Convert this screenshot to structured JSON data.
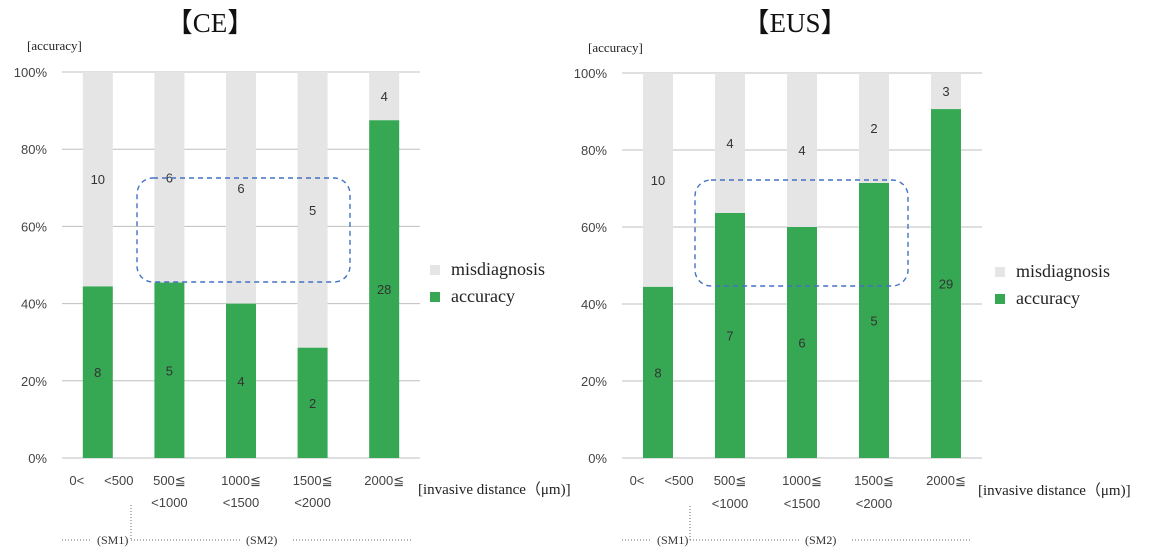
{
  "colors": {
    "accuracy": "#36a853",
    "misdiagnosis": "#e5e5e5",
    "grid": "#bfbfbf",
    "highlight": "#4472c4"
  },
  "charts": [
    {
      "title": "【CE】",
      "ylabel": "[accuracy]",
      "xlabel": "[invasive distance（μm)]",
      "legend": [
        "misdiagnosis",
        "accuracy"
      ],
      "categories": [
        [
          "0<",
          "<500"
        ],
        [
          "500≦",
          "<1000"
        ],
        [
          "1000≦",
          "<1500"
        ],
        [
          "1500≦",
          "<2000"
        ],
        [
          "2000≦"
        ]
      ],
      "groups": [
        "(SM1)",
        "(SM2)"
      ]
    },
    {
      "title": "【EUS】",
      "ylabel": "[accuracy]",
      "xlabel": "[invasive distance（μm)]",
      "legend": [
        "misdiagnosis",
        "accuracy"
      ],
      "categories": [
        [
          "0<",
          "<500"
        ],
        [
          "500≦",
          "<1000"
        ],
        [
          "1000≦",
          "<1500"
        ],
        [
          "1500≦",
          "<2000"
        ],
        [
          "2000≦"
        ]
      ],
      "groups": [
        "(SM1)",
        "(SM2)"
      ]
    }
  ],
  "chart_data": [
    {
      "type": "bar",
      "stacked": true,
      "normalized": true,
      "title": "【CE】",
      "ylabel": "[accuracy]",
      "xlabel": "[invasive distance（μm)]",
      "categories": [
        "0< <500",
        "500≦ <1000",
        "1000≦ <1500",
        "1500≦ <2000",
        "2000≦"
      ],
      "yticks": [
        "0%",
        "20%",
        "40%",
        "60%",
        "80%",
        "100%"
      ],
      "ylim": [
        0,
        100
      ],
      "series": [
        {
          "name": "accuracy",
          "values": [
            8,
            5,
            4,
            2,
            28
          ]
        },
        {
          "name": "misdiagnosis",
          "values": [
            10,
            6,
            6,
            5,
            4
          ]
        }
      ],
      "legend": "right",
      "grid": true
    },
    {
      "type": "bar",
      "stacked": true,
      "normalized": true,
      "title": "【EUS】",
      "ylabel": "[accuracy]",
      "xlabel": "[invasive distance（μm)]",
      "categories": [
        "0< <500",
        "500≦ <1000",
        "1000≦ <1500",
        "1500≦ <2000",
        "2000≦"
      ],
      "yticks": [
        "0%",
        "20%",
        "40%",
        "60%",
        "80%",
        "100%"
      ],
      "ylim": [
        0,
        100
      ],
      "series": [
        {
          "name": "accuracy",
          "values": [
            8,
            7,
            6,
            5,
            29
          ]
        },
        {
          "name": "misdiagnosis",
          "values": [
            10,
            4,
            4,
            2,
            3
          ]
        }
      ],
      "legend": "right",
      "grid": true
    }
  ]
}
